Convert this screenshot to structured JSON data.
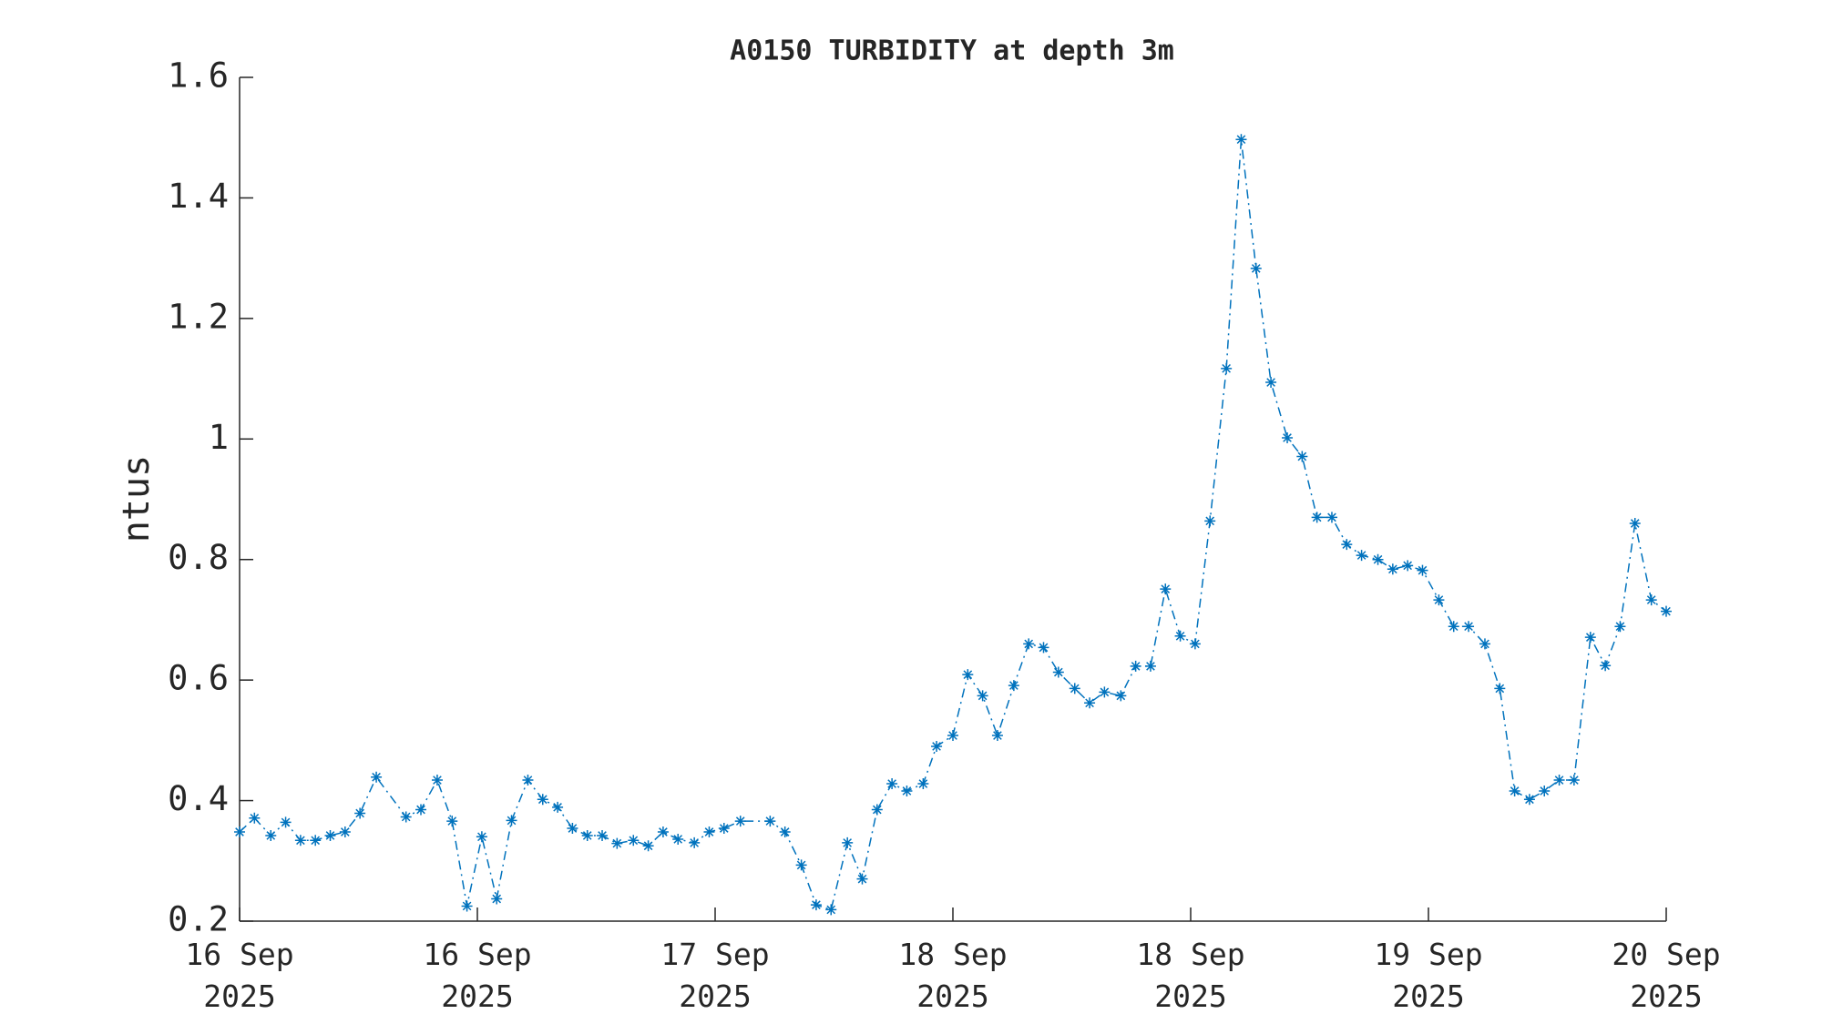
{
  "chart_data": {
    "type": "line",
    "title": "A0150 TURBIDITY at depth 3m",
    "y_label": "ntus",
    "xlim": [
      0,
      96
    ],
    "xticks": [
      {
        "value": 0,
        "label": "16 Sep 2025"
      },
      {
        "value": 16,
        "label": "16 Sep 2025"
      },
      {
        "value": 32,
        "label": "17 Sep 2025"
      },
      {
        "value": 48,
        "label": "18 Sep 2025"
      },
      {
        "value": 64,
        "label": "18 Sep 2025"
      },
      {
        "value": 80,
        "label": "19 Sep 2025"
      },
      {
        "value": 96,
        "label": "20 Sep 2025"
      }
    ],
    "ylim": [
      0.2,
      1.6
    ],
    "yticks": [
      0.2,
      0.4,
      0.6,
      0.8,
      1,
      1.2,
      1.4,
      1.6
    ],
    "color": "#0072bd",
    "x": [
      0,
      1.0,
      2.1,
      3.1,
      4.1,
      5.1,
      6.1,
      7.1,
      8.1,
      9.2,
      11.2,
      12.2,
      13.3,
      14.3,
      15.3,
      16.3,
      17.3,
      18.3,
      19.4,
      20.4,
      21.4,
      22.4,
      23.4,
      24.4,
      25.4,
      26.5,
      27.5,
      28.5,
      29.5,
      30.6,
      31.6,
      32.6,
      33.7,
      35.7,
      36.7,
      37.8,
      38.8,
      39.8,
      40.9,
      41.9,
      42.9,
      43.9,
      44.9,
      46.0,
      46.9,
      48.0,
      49.0,
      50.0,
      51.0,
      52.1,
      53.1,
      54.1,
      55.1,
      56.2,
      57.2,
      58.2,
      59.3,
      60.3,
      61.3,
      62.3,
      63.3,
      64.3,
      65.3,
      66.4,
      67.4,
      68.4,
      69.4,
      70.5,
      71.5,
      72.5,
      73.5,
      74.5,
      75.5,
      76.6,
      77.6,
      78.6,
      79.6,
      80.7,
      81.7,
      82.7,
      83.8,
      84.8,
      85.8,
      86.8,
      87.8,
      88.8,
      89.8,
      90.9,
      91.9,
      92.9,
      93.9,
      95.0,
      96.0
    ],
    "values": [
      0.348,
      0.371,
      0.342,
      0.364,
      0.334,
      0.334,
      0.342,
      0.348,
      0.379,
      0.439,
      0.373,
      0.385,
      0.434,
      0.366,
      0.225,
      0.34,
      0.237,
      0.367,
      0.434,
      0.402,
      0.389,
      0.354,
      0.342,
      0.342,
      0.329,
      0.334,
      0.325,
      0.348,
      0.336,
      0.33,
      0.348,
      0.354,
      0.366,
      0.366,
      0.348,
      0.293,
      0.227,
      0.219,
      0.33,
      0.27,
      0.385,
      0.428,
      0.416,
      0.428,
      0.49,
      0.508,
      0.609,
      0.574,
      0.508,
      0.591,
      0.66,
      0.654,
      0.613,
      0.586,
      0.562,
      0.58,
      0.574,
      0.623,
      0.623,
      0.751,
      0.673,
      0.66,
      0.864,
      1.117,
      1.497,
      1.283,
      1.094,
      1.002,
      0.971,
      0.87,
      0.87,
      0.825,
      0.807,
      0.8,
      0.784,
      0.79,
      0.782,
      0.733,
      0.689,
      0.689,
      0.66,
      0.586,
      0.416,
      0.402,
      0.416,
      0.434,
      0.434,
      0.671,
      0.624,
      0.689,
      0.86,
      0.733,
      0.714
    ]
  }
}
